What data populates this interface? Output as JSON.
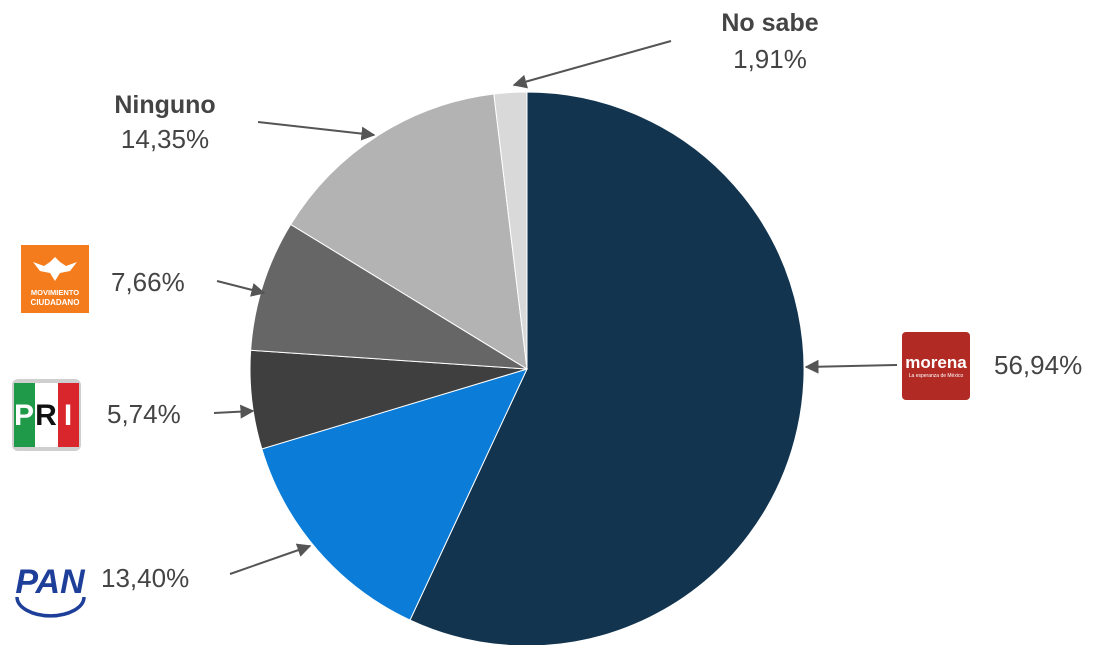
{
  "chart_data": {
    "type": "pie",
    "start_angle": "top",
    "direction": "clockwise",
    "slices": [
      {
        "key": "morena",
        "label": "morena",
        "sublabel": "La esperanza de México",
        "value": 56.94,
        "value_label": "56,94%",
        "color": "#12344f",
        "logo": "morena-logo"
      },
      {
        "key": "pan",
        "label": "PAN",
        "value": 13.4,
        "value_label": "13,40%",
        "color": "#0b7dd8",
        "logo": "pan-logo"
      },
      {
        "key": "pri",
        "label": "PRI",
        "value": 5.74,
        "value_label": "5,74%",
        "color": "#3f3f3f",
        "logo": "pri-logo"
      },
      {
        "key": "mc",
        "label": "MOVIMIENTO",
        "sublabel": "CIUDADANO",
        "value": 7.66,
        "value_label": "7,66%",
        "color": "#666666",
        "logo": "movimiento-ciudadano-logo"
      },
      {
        "key": "ninguno",
        "label": "Ninguno",
        "value": 14.35,
        "value_label": "14,35%",
        "color": "#b3b3b3"
      },
      {
        "key": "nosabe",
        "label": "No sabe",
        "value": 1.91,
        "value_label": "1,91%",
        "color": "#d9d9d9"
      }
    ],
    "legend": "none",
    "label_style": "external labels with arrows",
    "colors": {
      "arrow": "#555555",
      "text": "#444444",
      "morena_logo_bg": "#b22a24",
      "mc_logo_bg": "#f47c1d",
      "pri_green": "#1f9a48",
      "pri_red": "#d8262c",
      "pan_blue": "#1d3f99"
    }
  }
}
